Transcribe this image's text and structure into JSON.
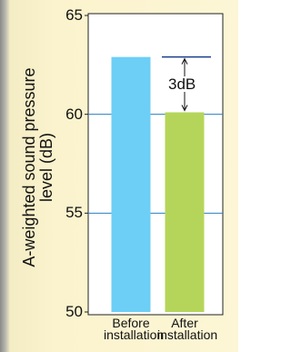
{
  "chart_data": {
    "type": "bar",
    "y_label": "A-weighted sound pressure level (dB)",
    "categories": [
      "Before installation",
      "After installation"
    ],
    "values": [
      62.9,
      60.1
    ],
    "colors": [
      "#6dcff6",
      "#b5d55a"
    ],
    "annotation": "3dB",
    "ylim": [
      50,
      65
    ],
    "yticks": [
      50,
      55,
      60,
      65
    ],
    "grid": true
  }
}
